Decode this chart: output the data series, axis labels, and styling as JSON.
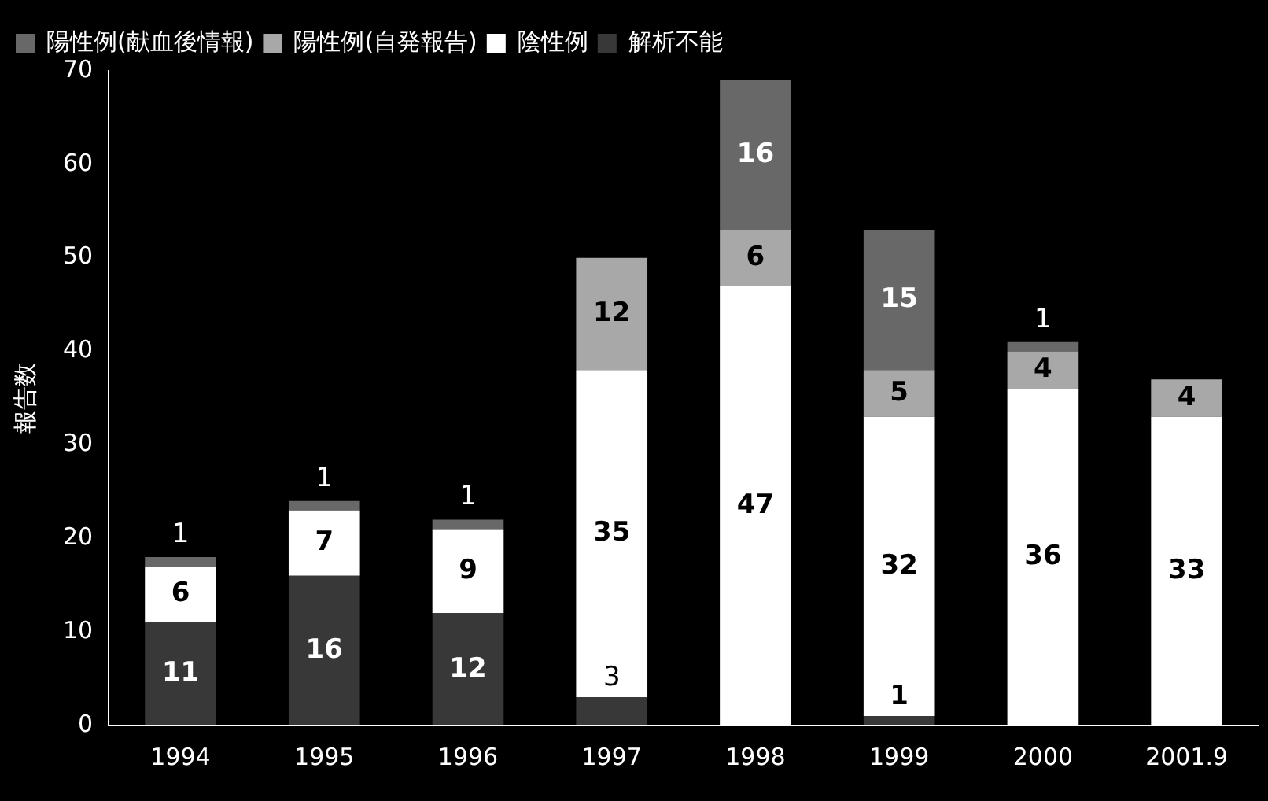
{
  "chart_data": {
    "type": "bar",
    "stacked": true,
    "ylabel": "報告数",
    "categories": [
      "1994",
      "1995",
      "1996",
      "1997",
      "1998",
      "1999",
      "2000",
      "2001.9"
    ],
    "series": [
      {
        "name": "解析不能",
        "color": "#383838",
        "values": [
          11,
          16,
          12,
          3,
          null,
          1,
          null,
          null
        ]
      },
      {
        "name": "陰性例",
        "color": "#ffffff",
        "values": [
          6,
          7,
          9,
          35,
          47,
          32,
          36,
          33
        ]
      },
      {
        "name": "陽性例(自発報告)",
        "color": "#a8a8a8",
        "values": [
          null,
          null,
          null,
          12,
          6,
          5,
          4,
          4
        ]
      },
      {
        "name": "陽性例(献血後情報)",
        "color": "#686868",
        "values": [
          1,
          1,
          1,
          null,
          16,
          15,
          1,
          null
        ]
      }
    ],
    "ylim": [
      0,
      70
    ],
    "yticks": [
      0,
      10,
      20,
      30,
      40,
      50,
      60,
      70
    ],
    "data_labels": true,
    "grid": false,
    "legend": "top left"
  }
}
